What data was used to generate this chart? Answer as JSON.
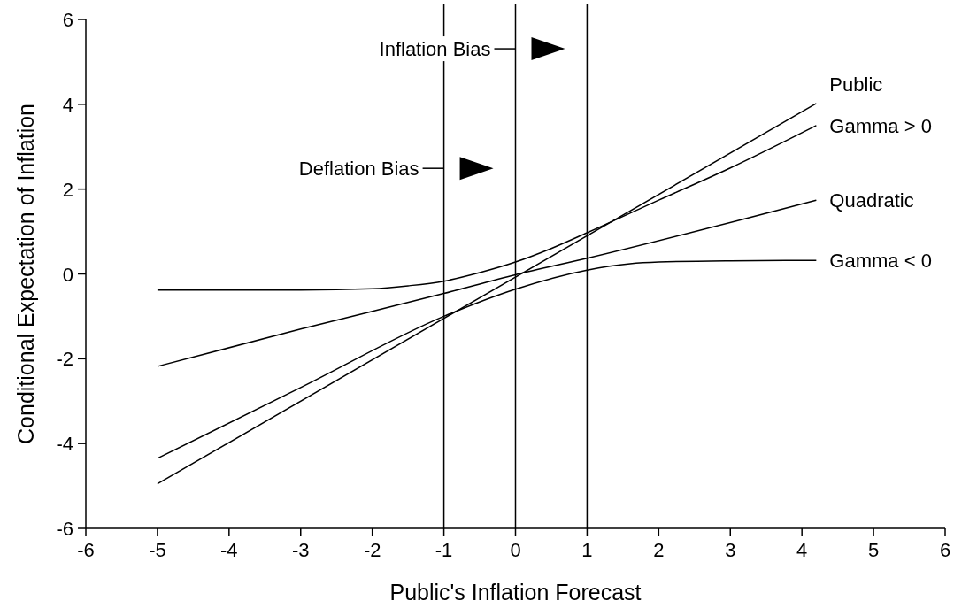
{
  "chart_data": {
    "type": "line",
    "xlabel": "Public's Inflation Forecast",
    "ylabel": "Conditional Expectation of Inflation",
    "xlim": [
      -6,
      6
    ],
    "xticks": [
      -6,
      -5,
      -4,
      -3,
      -2,
      -1,
      0,
      1,
      2,
      3,
      4,
      5,
      6
    ],
    "ylim": [
      -6,
      6
    ],
    "yticks": [
      -6,
      -4,
      -2,
      0,
      2,
      4,
      6
    ],
    "grid": false,
    "marker": "none",
    "line_style": "solid",
    "series": [
      {
        "name": "Public",
        "color": "#000000",
        "x": [
          -5,
          4.2
        ],
        "values": [
          -4.95,
          4.02
        ]
      },
      {
        "name": "Gamma > 0",
        "color": "#000000",
        "x": [
          -5,
          -4,
          -3,
          -2,
          -1.5,
          -1,
          -0.5,
          0,
          0.5,
          1,
          2,
          3,
          4.2
        ],
        "values": [
          -0.38,
          -0.38,
          -0.38,
          -0.35,
          -0.28,
          -0.17,
          0.03,
          0.28,
          0.6,
          0.97,
          1.74,
          2.5,
          3.5
        ]
      },
      {
        "name": "Quadratic",
        "color": "#000000",
        "x": [
          -5,
          -3,
          -1,
          0,
          1,
          4.2
        ],
        "values": [
          -2.18,
          -1.3,
          -0.46,
          -0.02,
          0.37,
          1.74
        ]
      },
      {
        "name": "Gamma < 0",
        "color": "#000000",
        "x": [
          -5,
          -3,
          -1,
          0,
          1,
          1.6,
          2,
          3,
          4.2
        ],
        "values": [
          -4.35,
          -2.68,
          -1.0,
          -0.36,
          0.09,
          0.24,
          0.28,
          0.31,
          0.32
        ]
      }
    ],
    "ref_lines": [
      {
        "axis": "x",
        "value": -1,
        "color": "#000000"
      },
      {
        "axis": "x",
        "value": 0,
        "color": "#000000"
      },
      {
        "axis": "x",
        "value": 1,
        "color": "#000000"
      }
    ],
    "annotations": [
      {
        "text": "Deflation Bias",
        "x": -1,
        "y": 2.49
      },
      {
        "text": "Inflation Bias",
        "x": 0,
        "y": 5.31
      }
    ]
  }
}
